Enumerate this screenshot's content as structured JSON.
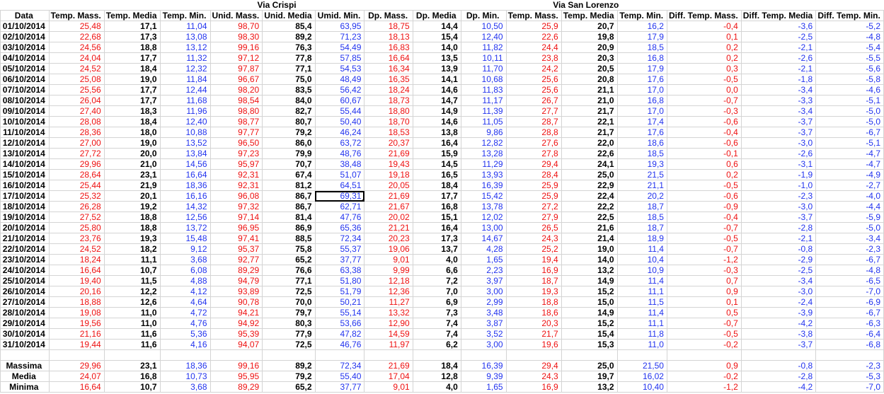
{
  "groups": {
    "via_crispi": "Via Crispi",
    "via_san_lorenzo": "Via San Lorenzo"
  },
  "headers": [
    "Data",
    "Temp. Mass.",
    "Temp. Media",
    "Temp. Min.",
    "Unid. Mass.",
    "Unid. Media",
    "Umid. Min.",
    "Dp. Mass.",
    "Dp. Media",
    "Dp. Min.",
    "Temp. Mass.",
    "Temp. Media",
    "Temp. Min.",
    "Diff. Temp. Mass.",
    "Diff. Temp. Media",
    "Diff. Temp. Min."
  ],
  "column_styles": [
    "dt",
    "r",
    "b",
    "u",
    "r",
    "b",
    "u",
    "r",
    "b",
    "u",
    "r",
    "b",
    "u",
    "r",
    "u",
    "u"
  ],
  "rows": [
    [
      "01/10/2014",
      "25,48",
      "17,1",
      "11,04",
      "98,70",
      "85,4",
      "63,95",
      "18,75",
      "14,4",
      "10,50",
      "25,9",
      "20,7",
      "16,2",
      "-0,4",
      "-3,6",
      "-5,2"
    ],
    [
      "02/10/2014",
      "22,68",
      "17,3",
      "13,08",
      "98,30",
      "89,2",
      "71,23",
      "18,13",
      "15,4",
      "12,40",
      "22,6",
      "19,8",
      "17,9",
      "0,1",
      "-2,5",
      "-4,8"
    ],
    [
      "03/10/2014",
      "24,56",
      "18,8",
      "13,12",
      "99,16",
      "76,3",
      "54,49",
      "16,83",
      "14,0",
      "11,82",
      "24,4",
      "20,9",
      "18,5",
      "0,2",
      "-2,1",
      "-5,4"
    ],
    [
      "04/10/2014",
      "24,04",
      "17,7",
      "11,32",
      "97,12",
      "77,8",
      "57,85",
      "16,64",
      "13,5",
      "10,11",
      "23,8",
      "20,3",
      "16,8",
      "0,2",
      "-2,6",
      "-5,5"
    ],
    [
      "05/10/2014",
      "24,52",
      "18,4",
      "12,32",
      "97,87",
      "77,1",
      "54,53",
      "16,34",
      "13,9",
      "11,70",
      "24,2",
      "20,5",
      "17,9",
      "0,3",
      "-2,1",
      "-5,6"
    ],
    [
      "06/10/2014",
      "25,08",
      "19,0",
      "11,84",
      "96,67",
      "75,0",
      "48,49",
      "16,35",
      "14,1",
      "10,68",
      "25,6",
      "20,8",
      "17,6",
      "-0,5",
      "-1,8",
      "-5,8"
    ],
    [
      "07/10/2014",
      "25,56",
      "17,7",
      "12,44",
      "98,20",
      "83,5",
      "56,42",
      "18,24",
      "14,6",
      "11,83",
      "25,6",
      "21,1",
      "17,0",
      "0,0",
      "-3,4",
      "-4,6"
    ],
    [
      "08/10/2014",
      "26,04",
      "17,7",
      "11,68",
      "98,54",
      "84,0",
      "60,67",
      "18,73",
      "14,7",
      "11,17",
      "26,7",
      "21,0",
      "16,8",
      "-0,7",
      "-3,3",
      "-5,1"
    ],
    [
      "09/10/2014",
      "27,40",
      "18,3",
      "11,96",
      "98,80",
      "82,7",
      "55,44",
      "18,80",
      "14,9",
      "11,39",
      "27,7",
      "21,7",
      "17,0",
      "-0,3",
      "-3,4",
      "-5,0"
    ],
    [
      "10/10/2014",
      "28,08",
      "18,4",
      "12,40",
      "98,77",
      "80,7",
      "50,40",
      "18,70",
      "14,6",
      "11,05",
      "28,7",
      "22,1",
      "17,4",
      "-0,6",
      "-3,7",
      "-5,0"
    ],
    [
      "11/10/2014",
      "28,36",
      "18,0",
      "10,88",
      "97,77",
      "79,2",
      "46,24",
      "18,53",
      "13,8",
      "9,86",
      "28,8",
      "21,7",
      "17,6",
      "-0,4",
      "-3,7",
      "-6,7"
    ],
    [
      "12/10/2014",
      "27,00",
      "19,0",
      "13,52",
      "96,50",
      "86,0",
      "63,72",
      "20,37",
      "16,4",
      "12,82",
      "27,6",
      "22,0",
      "18,6",
      "-0,6",
      "-3,0",
      "-5,1"
    ],
    [
      "13/10/2014",
      "27,72",
      "20,0",
      "13,84",
      "97,23",
      "79,9",
      "48,76",
      "21,69",
      "15,9",
      "13,28",
      "27,8",
      "22,6",
      "18,5",
      "-0,1",
      "-2,6",
      "-4,7"
    ],
    [
      "14/10/2014",
      "29,96",
      "21,0",
      "14,56",
      "95,97",
      "70,7",
      "38,48",
      "19,43",
      "14,5",
      "11,29",
      "29,4",
      "24,1",
      "19,3",
      "0,6",
      "-3,1",
      "-4,7"
    ],
    [
      "15/10/2014",
      "28,64",
      "23,1",
      "16,64",
      "92,31",
      "67,4",
      "51,07",
      "19,18",
      "16,5",
      "13,93",
      "28,4",
      "25,0",
      "21,5",
      "0,2",
      "-1,9",
      "-4,9"
    ],
    [
      "16/10/2014",
      "25,44",
      "21,9",
      "18,36",
      "92,31",
      "81,2",
      "64,51",
      "20,05",
      "18,4",
      "16,39",
      "25,9",
      "22,9",
      "21,1",
      "-0,5",
      "-1,0",
      "-2,7"
    ],
    [
      "17/10/2014",
      "25,32",
      "20,1",
      "16,16",
      "96,08",
      "86,7",
      "69,31",
      "21,69",
      "17,7",
      "15,42",
      "25,9",
      "22,4",
      "20,2",
      "-0,6",
      "-2,3",
      "-4,0"
    ],
    [
      "18/10/2014",
      "26,28",
      "19,2",
      "14,32",
      "97,32",
      "86,7",
      "62,71",
      "21,67",
      "16,8",
      "13,78",
      "27,2",
      "22,2",
      "18,7",
      "-0,9",
      "-3,0",
      "-4,4"
    ],
    [
      "19/10/2014",
      "27,52",
      "18,8",
      "12,56",
      "97,14",
      "81,4",
      "47,76",
      "20,02",
      "15,1",
      "12,02",
      "27,9",
      "22,5",
      "18,5",
      "-0,4",
      "-3,7",
      "-5,9"
    ],
    [
      "20/10/2014",
      "25,80",
      "18,8",
      "13,72",
      "96,95",
      "86,9",
      "65,36",
      "21,21",
      "16,4",
      "13,00",
      "26,5",
      "21,6",
      "18,7",
      "-0,7",
      "-2,8",
      "-5,0"
    ],
    [
      "21/10/2014",
      "23,76",
      "19,3",
      "15,48",
      "97,41",
      "88,5",
      "72,34",
      "20,23",
      "17,3",
      "14,67",
      "24,3",
      "21,4",
      "18,9",
      "-0,5",
      "-2,1",
      "-3,4"
    ],
    [
      "22/10/2014",
      "24,52",
      "18,2",
      "9,12",
      "95,37",
      "75,8",
      "55,37",
      "19,06",
      "13,7",
      "4,28",
      "25,2",
      "19,0",
      "11,4",
      "-0,7",
      "-0,8",
      "-2,3"
    ],
    [
      "23/10/2014",
      "18,24",
      "11,1",
      "3,68",
      "92,77",
      "65,2",
      "37,77",
      "9,01",
      "4,0",
      "1,65",
      "19,4",
      "14,0",
      "10,4",
      "-1,2",
      "-2,9",
      "-6,7"
    ],
    [
      "24/10/2014",
      "16,64",
      "10,7",
      "6,08",
      "89,29",
      "76,6",
      "63,38",
      "9,99",
      "6,6",
      "2,23",
      "16,9",
      "13,2",
      "10,9",
      "-0,3",
      "-2,5",
      "-4,8"
    ],
    [
      "25/10/2014",
      "19,40",
      "11,5",
      "4,88",
      "94,79",
      "77,1",
      "51,80",
      "12,18",
      "7,2",
      "3,97",
      "18,7",
      "14,9",
      "11,4",
      "0,7",
      "-3,4",
      "-6,5"
    ],
    [
      "26/10/2014",
      "20,16",
      "12,2",
      "4,12",
      "93,89",
      "72,5",
      "51,79",
      "12,36",
      "7,0",
      "3,00",
      "19,3",
      "15,2",
      "11,1",
      "0,9",
      "-3,0",
      "-7,0"
    ],
    [
      "27/10/2014",
      "18,88",
      "12,6",
      "4,64",
      "90,78",
      "70,0",
      "50,21",
      "11,27",
      "6,9",
      "2,99",
      "18,8",
      "15,0",
      "11,5",
      "0,1",
      "-2,4",
      "-6,9"
    ],
    [
      "28/10/2014",
      "19,08",
      "11,0",
      "4,72",
      "94,21",
      "79,7",
      "55,14",
      "13,32",
      "7,3",
      "3,48",
      "18,6",
      "14,9",
      "11,4",
      "0,5",
      "-3,9",
      "-6,7"
    ],
    [
      "29/10/2014",
      "19,56",
      "11,0",
      "4,76",
      "94,92",
      "80,3",
      "53,66",
      "12,90",
      "7,4",
      "3,87",
      "20,3",
      "15,2",
      "11,1",
      "-0,7",
      "-4,2",
      "-6,3"
    ],
    [
      "30/10/2014",
      "21,16",
      "11,6",
      "5,36",
      "95,39",
      "77,9",
      "47,82",
      "14,59",
      "7,4",
      "3,52",
      "21,7",
      "15,4",
      "11,8",
      "-0,5",
      "-3,8",
      "-6,4"
    ],
    [
      "31/10/2014",
      "19,44",
      "11,6",
      "4,16",
      "94,07",
      "72,5",
      "46,76",
      "11,97",
      "6,2",
      "3,00",
      "19,6",
      "15,3",
      "11,0",
      "-0,2",
      "-3,7",
      "-6,8"
    ]
  ],
  "summary": [
    [
      "Massima",
      "29,96",
      "23,1",
      "18,36",
      "99,16",
      "89,2",
      "72,34",
      "21,69",
      "18,4",
      "16,39",
      "29,4",
      "25,0",
      "21,50",
      "0,9",
      "-0,8",
      "-2,3"
    ],
    [
      "Media",
      "24,07",
      "16,8",
      "10,73",
      "95,95",
      "79,2",
      "55,40",
      "17,04",
      "12,8",
      "9,39",
      "24,3",
      "19,7",
      "16,02",
      "-0,2",
      "-2,8",
      "-5,3"
    ],
    [
      "Minima",
      "16,64",
      "10,7",
      "3,68",
      "89,29",
      "65,2",
      "37,77",
      "9,01",
      "4,0",
      "1,65",
      "16,9",
      "13,2",
      "10,40",
      "-1,2",
      "-4,2",
      "-7,0"
    ]
  ],
  "selected_cell": {
    "row": 16,
    "col": 6
  },
  "colors": {
    "red": "#ee1111",
    "black": "#000000",
    "blue": "#2233ee",
    "grid": "#d4d4d4"
  }
}
